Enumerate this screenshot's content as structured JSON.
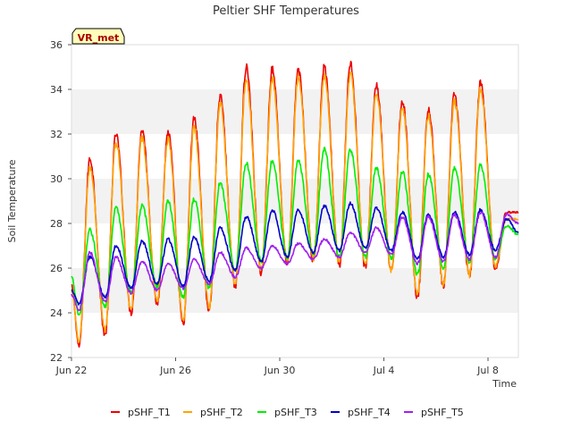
{
  "chart_data": {
    "type": "line",
    "title": "Peltier SHF Temperatures",
    "xlabel": "Time",
    "ylabel": "Soil Temperature",
    "ylim": [
      22,
      36
    ],
    "yticks": [
      22,
      24,
      26,
      28,
      30,
      32,
      34,
      36
    ],
    "xlim": [
      "2022-06-22",
      "2022-07-09T04:00"
    ],
    "xticks": [
      {
        "date": "2022-06-22",
        "label": "Jun 22"
      },
      {
        "date": "2022-06-26",
        "label": "Jun 26"
      },
      {
        "date": "2022-06-30",
        "label": "Jun 30"
      },
      {
        "date": "2022-07-04",
        "label": "Jul 4"
      },
      {
        "date": "2022-07-08",
        "label": "Jul 8"
      }
    ],
    "grid": "alternating horizontal bands",
    "legend_position": "bottom",
    "annotation": "VR_met",
    "peak_time_of_day": "17:00",
    "trough_time_of_day": "07:00",
    "days": [
      "Jun 22",
      "Jun 23",
      "Jun 24",
      "Jun 25",
      "Jun 26",
      "Jun 27",
      "Jun 28",
      "Jun 29",
      "Jun 30",
      "Jul 1",
      "Jul 2",
      "Jul 3",
      "Jul 4",
      "Jul 5",
      "Jul 6",
      "Jul 7",
      "Jul 8"
    ],
    "series": [
      {
        "name": "pSHF_T1",
        "color": "#ee0000",
        "start": 25.2,
        "daily_min": [
          22.5,
          23.0,
          24.0,
          24.4,
          23.5,
          24.1,
          25.2,
          25.8,
          26.2,
          26.3,
          26.1,
          26.0,
          25.8,
          24.7,
          25.2,
          25.6,
          26.0
        ],
        "daily_max": [
          30.9,
          32.0,
          32.2,
          32.1,
          32.7,
          33.7,
          35.0,
          34.9,
          34.9,
          35.0,
          35.2,
          34.2,
          33.5,
          33.1,
          33.8,
          34.3,
          28.5
        ],
        "end": 28.5
      },
      {
        "name": "pSHF_T2",
        "color": "#ffa500",
        "start": 25.0,
        "daily_min": [
          22.7,
          23.2,
          24.2,
          24.6,
          23.7,
          24.3,
          25.3,
          25.9,
          26.3,
          26.4,
          26.2,
          26.1,
          25.9,
          24.9,
          25.3,
          25.7,
          26.1
        ],
        "daily_max": [
          30.5,
          31.6,
          31.8,
          31.8,
          32.3,
          33.4,
          34.5,
          34.5,
          34.5,
          34.6,
          34.7,
          33.8,
          33.2,
          32.8,
          33.5,
          34.0,
          28.2
        ],
        "end": 28.2
      },
      {
        "name": "pSHF_T3",
        "color": "#00ee00",
        "start": 25.6,
        "daily_min": [
          23.9,
          24.3,
          24.9,
          25.2,
          24.7,
          25.1,
          25.9,
          26.3,
          26.5,
          26.6,
          26.5,
          26.5,
          26.4,
          25.7,
          26.0,
          26.3,
          26.4
        ],
        "daily_max": [
          27.7,
          28.7,
          28.8,
          29.0,
          29.1,
          29.8,
          30.7,
          30.8,
          30.8,
          31.3,
          31.3,
          30.5,
          30.3,
          30.2,
          30.5,
          30.6,
          27.9
        ],
        "end": 27.5
      },
      {
        "name": "pSHF_T4",
        "color": "#0000cc",
        "start": 25.0,
        "daily_min": [
          24.4,
          24.7,
          25.1,
          25.3,
          25.2,
          25.4,
          25.9,
          26.3,
          26.5,
          26.7,
          26.8,
          26.9,
          26.8,
          26.4,
          26.5,
          26.6,
          26.8
        ],
        "daily_max": [
          26.5,
          27.0,
          27.2,
          27.3,
          27.4,
          27.8,
          28.3,
          28.6,
          28.6,
          28.8,
          28.9,
          28.7,
          28.5,
          28.4,
          28.5,
          28.6,
          28.2
        ],
        "end": 27.6
      },
      {
        "name": "pSHF_T5",
        "color": "#a020f0",
        "start": 24.8,
        "daily_min": [
          24.1,
          24.5,
          24.9,
          25.0,
          25.1,
          25.3,
          25.6,
          26.0,
          26.2,
          26.4,
          26.5,
          26.7,
          26.6,
          26.2,
          26.3,
          26.4,
          26.5
        ],
        "daily_max": [
          26.7,
          26.5,
          26.3,
          26.2,
          26.4,
          26.7,
          26.9,
          27.0,
          27.1,
          27.3,
          27.6,
          27.8,
          28.3,
          28.3,
          28.4,
          28.5,
          28.4
        ],
        "end": 28.0
      }
    ]
  }
}
